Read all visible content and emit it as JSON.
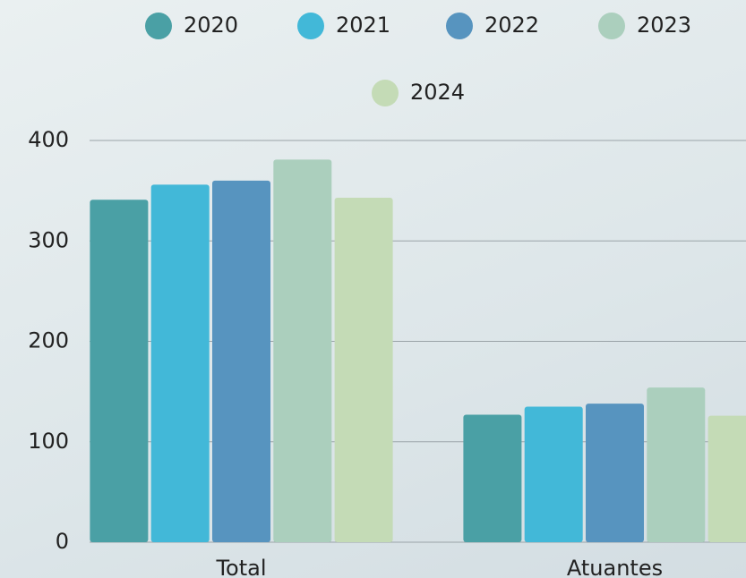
{
  "chart_data": {
    "type": "bar",
    "categories": [
      "Total",
      "Atuantes"
    ],
    "series": [
      {
        "name": "2020",
        "color": "#4aa0a5",
        "values": [
          341,
          127
        ]
      },
      {
        "name": "2021",
        "color": "#42b8d8",
        "values": [
          356,
          135
        ]
      },
      {
        "name": "2022",
        "color": "#5794bf",
        "values": [
          360,
          138
        ]
      },
      {
        "name": "2023",
        "color": "#abcfbd",
        "values": [
          381,
          154
        ]
      },
      {
        "name": "2024",
        "color": "#c4dbb6",
        "values": [
          343,
          126
        ]
      }
    ],
    "ylim": [
      0,
      400
    ],
    "yticks": [
      0,
      100,
      200,
      300,
      400
    ],
    "grid": true,
    "legend": "top"
  }
}
